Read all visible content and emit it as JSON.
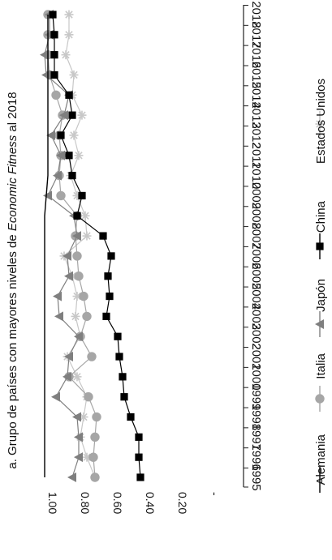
{
  "chart_data": {
    "type": "line",
    "title": "a. Grupo de países con mayores niveles de Economic Fitness al 2018",
    "title_parts": {
      "prefix": "a. Grupo de países con mayores niveles de ",
      "italic": "Economic Fitness",
      "suffix": " al 2018"
    },
    "orientation": "rotated-90-clockwise",
    "x": [
      "1995",
      "1996",
      "1997",
      "1998",
      "1999",
      "2000",
      "2001",
      "2002",
      "2003",
      "2004",
      "2005",
      "2006",
      "2007",
      "2008",
      "2009",
      "2010",
      "2011",
      "2012",
      "2013",
      "2014",
      "2015",
      "2016",
      "2017",
      "2018"
    ],
    "ylim": [
      0,
      1.0
    ],
    "y_inverted": true,
    "yticks": [
      "1.00",
      "0.80",
      "0.60",
      "0.40",
      "0.20",
      "-"
    ],
    "ytick_values": [
      1.0,
      0.8,
      0.6,
      0.4,
      0.2,
      0.0
    ],
    "grid": false,
    "legend_position": "right",
    "series": [
      {
        "name": "Alemania",
        "color": "#000000",
        "marker": "none",
        "values": [
          1.0,
          1.0,
          1.0,
          1.0,
          1.0,
          1.0,
          1.0,
          1.0,
          1.0,
          1.0,
          1.0,
          1.0,
          1.0,
          1.0,
          0.99,
          0.98,
          0.98,
          0.98,
          0.98,
          0.98,
          0.98,
          0.98,
          0.98,
          0.98
        ]
      },
      {
        "name": "Italia",
        "color": "#a6a6a6",
        "marker": "circle",
        "values": [
          0.69,
          0.7,
          0.69,
          0.68,
          0.73,
          0.85,
          0.71,
          0.78,
          0.74,
          0.76,
          0.79,
          0.8,
          0.81,
          0.8,
          0.9,
          0.91,
          0.9,
          0.91,
          0.89,
          0.93,
          0.97,
          0.98,
          0.98,
          0.98
        ]
      },
      {
        "name": "Japón",
        "color": "#7f7f7f",
        "marker": "triangle",
        "values": [
          0.83,
          0.79,
          0.79,
          0.8,
          0.93,
          0.86,
          0.85,
          0.79,
          0.91,
          0.92,
          0.85,
          0.86,
          0.8,
          0.82,
          0.98,
          0.92,
          0.9,
          0.96,
          0.88,
          0.85,
          0.99,
          1.0,
          0.97,
          0.97
        ]
      },
      {
        "name": "China",
        "color": "#000000",
        "marker": "square",
        "values": [
          0.41,
          0.42,
          0.42,
          0.47,
          0.51,
          0.52,
          0.54,
          0.55,
          0.62,
          0.6,
          0.61,
          0.59,
          0.64,
          0.8,
          0.77,
          0.83,
          0.85,
          0.9,
          0.83,
          0.85,
          0.94,
          0.94,
          0.94,
          0.95
        ]
      },
      {
        "name": "Estados Unidos",
        "color": "#c8c8c8",
        "marker": "star",
        "values": [
          0.69,
          0.74,
          0.78,
          0.76,
          0.74,
          0.8,
          0.86,
          0.78,
          0.81,
          0.8,
          0.83,
          0.88,
          0.74,
          0.75,
          0.8,
          0.84,
          0.79,
          0.82,
          0.77,
          0.83,
          0.82,
          0.87,
          0.85,
          0.85
        ]
      }
    ]
  }
}
